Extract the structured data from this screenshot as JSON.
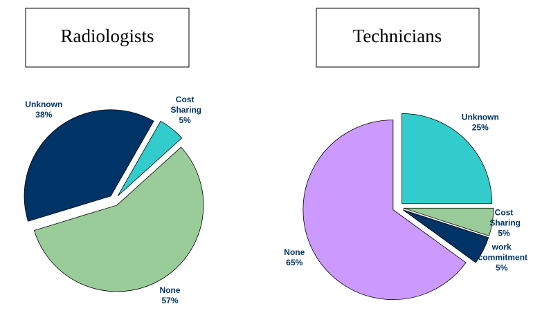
{
  "chart_data": [
    {
      "type": "pie",
      "title": "Radiologists",
      "categories": [
        "Unknown",
        "Cost Sharing",
        "None"
      ],
      "values": [
        38,
        5,
        57
      ],
      "value_labels": [
        "38%",
        "5%",
        "57%"
      ],
      "colors": [
        "#003366",
        "#33cccc",
        "#99cc99"
      ]
    },
    {
      "type": "pie",
      "title": "Technicians",
      "categories": [
        "Unknown",
        "Cost Sharing",
        "work commitment",
        "None"
      ],
      "values": [
        25,
        5,
        5,
        65
      ],
      "value_labels": [
        "25%",
        "5%",
        "5%",
        "65%"
      ],
      "colors": [
        "#33cccc",
        "#99cc99",
        "#003366",
        "#cc99ff"
      ]
    }
  ]
}
